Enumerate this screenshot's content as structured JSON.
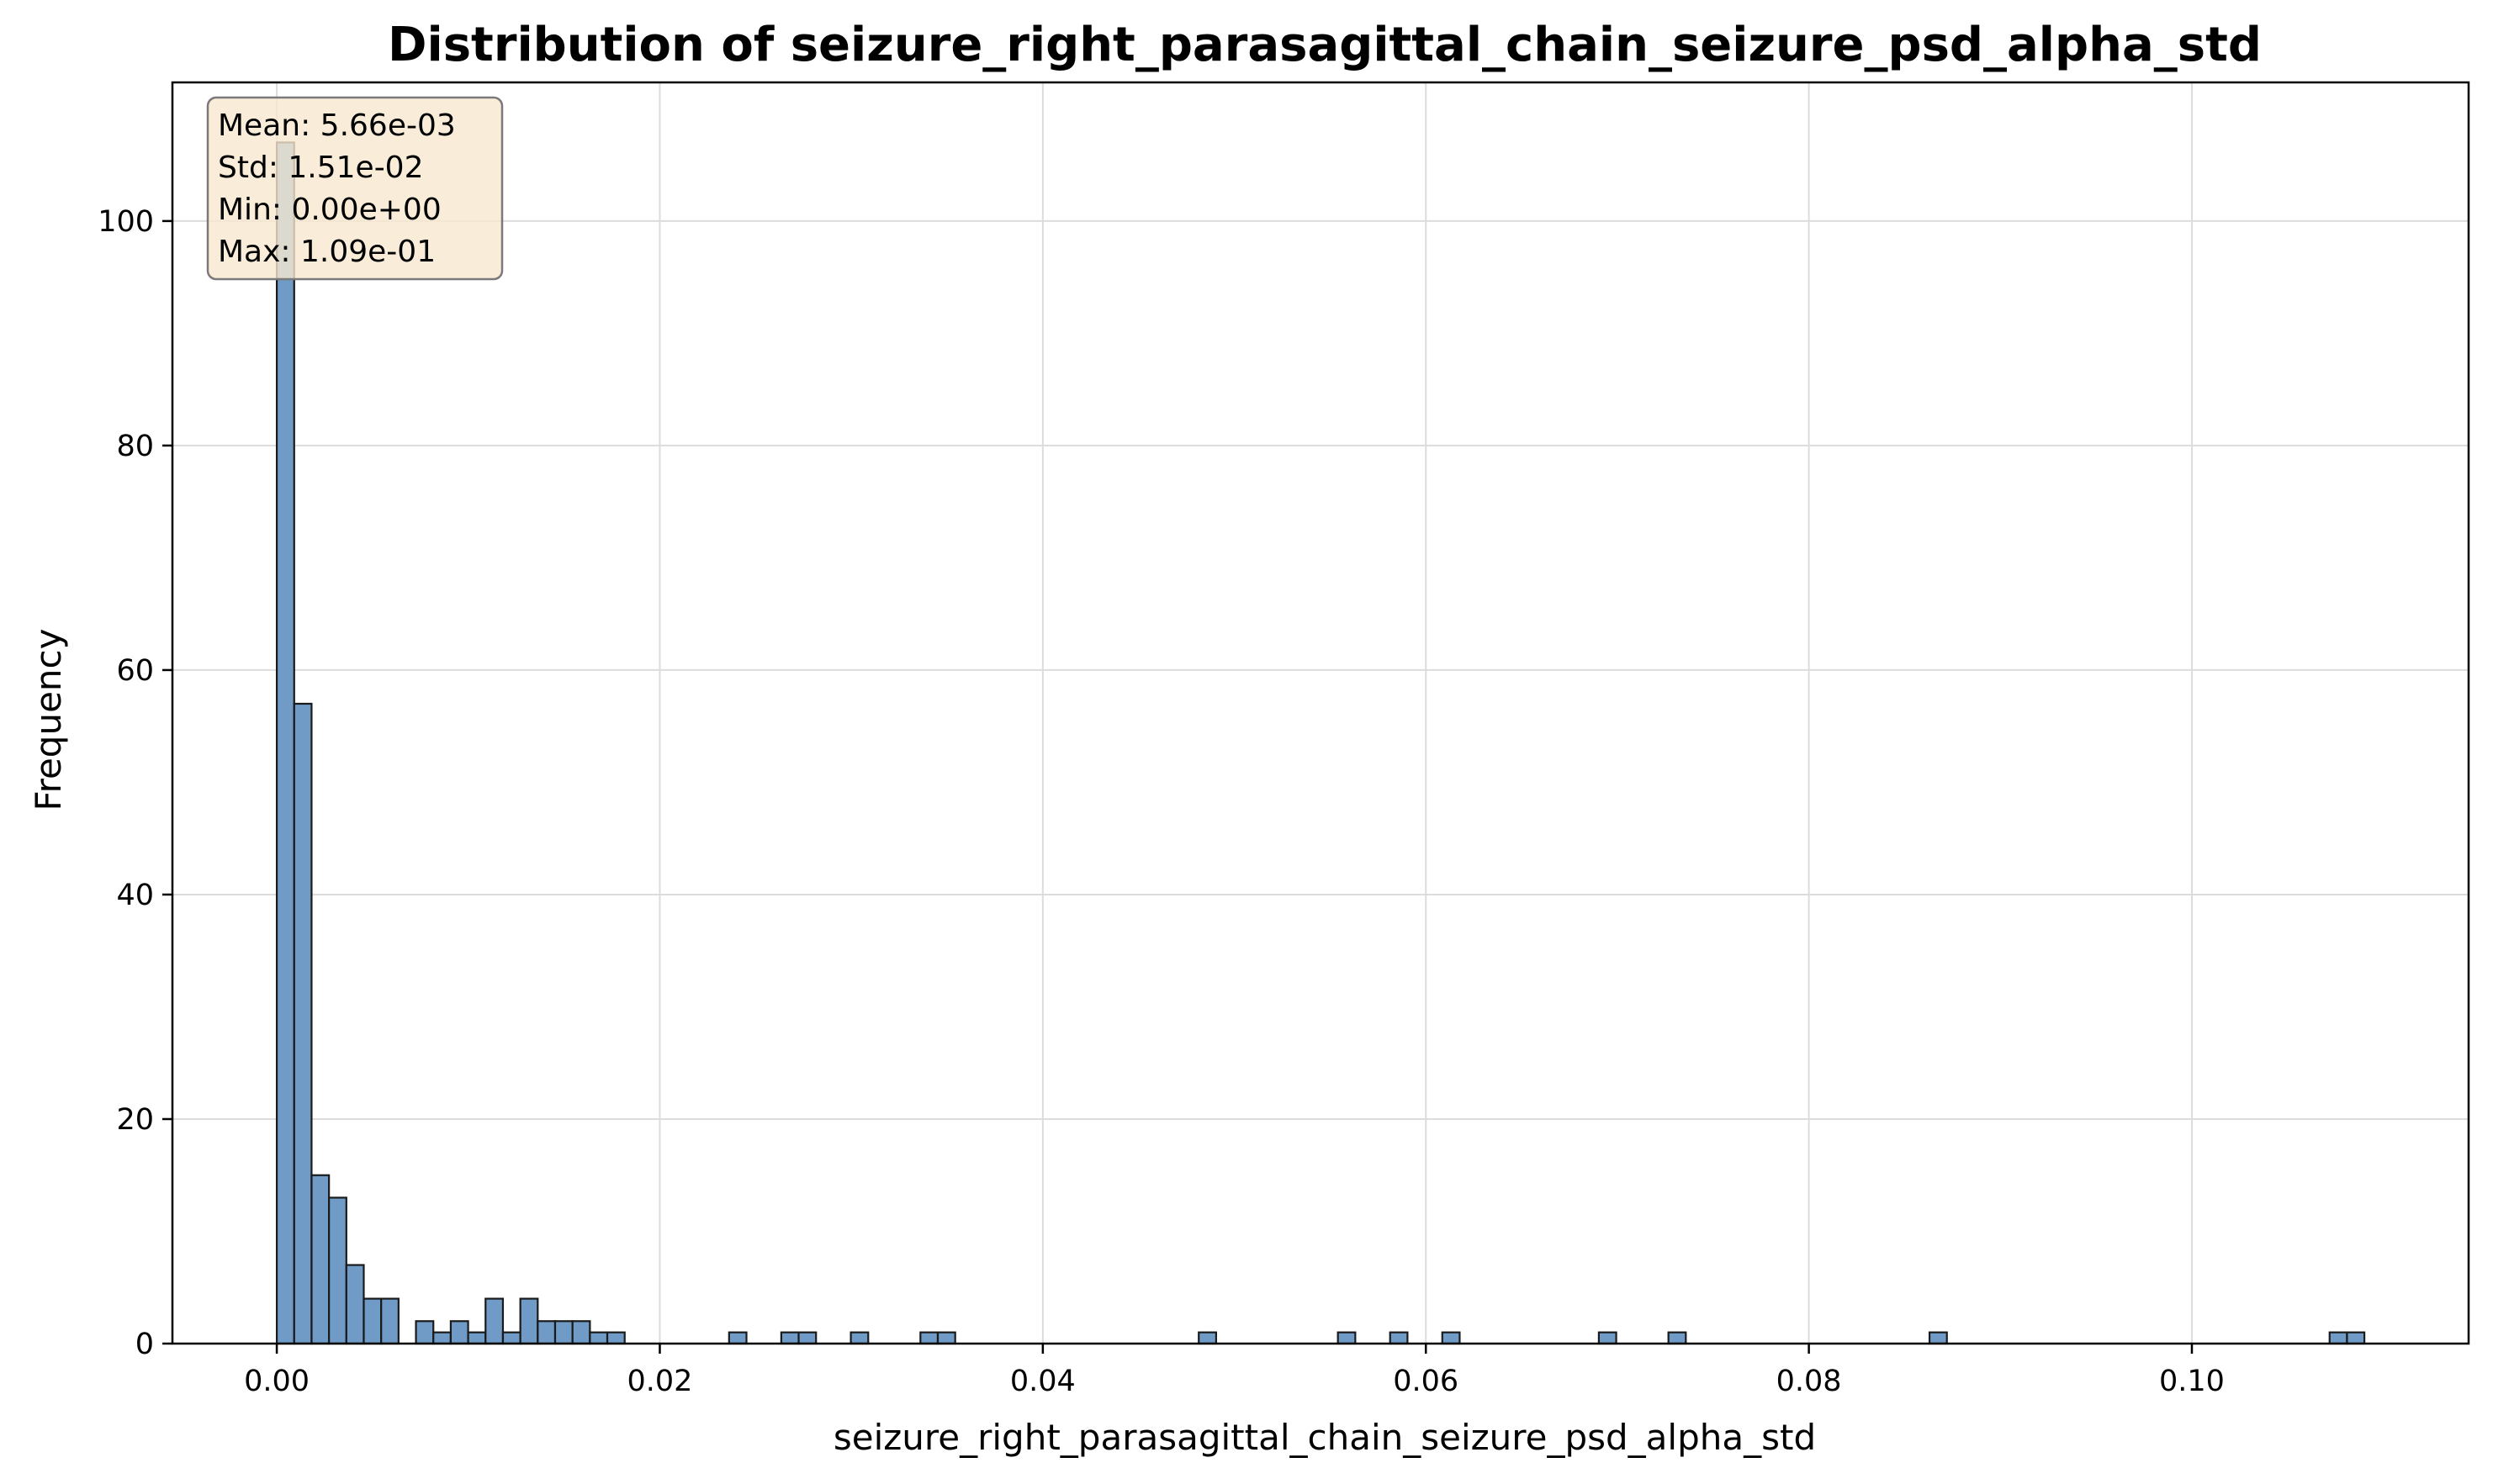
{
  "chart_data": {
    "type": "bar",
    "title": "Distribution of seizure_right_parasagittal_chain_seizure_psd_alpha_std",
    "xlabel": "seizure_right_parasagittal_chain_seizure_psd_alpha_std",
    "ylabel": "Frequency",
    "xlim": [
      -0.00545,
      0.11445
    ],
    "ylim": [
      0,
      112.35
    ],
    "xticks": [
      0.0,
      0.02,
      0.04,
      0.06,
      0.08,
      0.1
    ],
    "xtick_labels": [
      "0.00",
      "0.02",
      "0.04",
      "0.06",
      "0.08",
      "0.10"
    ],
    "yticks": [
      0,
      20,
      40,
      60,
      80,
      100
    ],
    "ytick_labels": [
      "0",
      "20",
      "40",
      "60",
      "80",
      "100"
    ],
    "grid": true,
    "bin_width": 0.000908,
    "bins": [
      {
        "x0": 0.0,
        "count": 107
      },
      {
        "x0": 0.000908,
        "count": 57
      },
      {
        "x0": 0.001817,
        "count": 15
      },
      {
        "x0": 0.002725,
        "count": 13
      },
      {
        "x0": 0.003633,
        "count": 7
      },
      {
        "x0": 0.004542,
        "count": 4
      },
      {
        "x0": 0.00545,
        "count": 4
      },
      {
        "x0": 0.007267,
        "count": 2
      },
      {
        "x0": 0.008175,
        "count": 1
      },
      {
        "x0": 0.009083,
        "count": 2
      },
      {
        "x0": 0.009992,
        "count": 1
      },
      {
        "x0": 0.0109,
        "count": 4
      },
      {
        "x0": 0.011808,
        "count": 1
      },
      {
        "x0": 0.012717,
        "count": 4
      },
      {
        "x0": 0.013625,
        "count": 2
      },
      {
        "x0": 0.014533,
        "count": 2
      },
      {
        "x0": 0.015442,
        "count": 2
      },
      {
        "x0": 0.01635,
        "count": 1
      },
      {
        "x0": 0.017258,
        "count": 1
      },
      {
        "x0": 0.023617,
        "count": 1
      },
      {
        "x0": 0.026342,
        "count": 1
      },
      {
        "x0": 0.02725,
        "count": 1
      },
      {
        "x0": 0.029975,
        "count": 1
      },
      {
        "x0": 0.033608,
        "count": 1
      },
      {
        "x0": 0.034517,
        "count": 1
      },
      {
        "x0": 0.048142,
        "count": 1
      },
      {
        "x0": 0.055408,
        "count": 1
      },
      {
        "x0": 0.058133,
        "count": 1
      },
      {
        "x0": 0.060858,
        "count": 1
      },
      {
        "x0": 0.069033,
        "count": 1
      },
      {
        "x0": 0.072667,
        "count": 1
      },
      {
        "x0": 0.0863,
        "count": 1
      },
      {
        "x0": 0.107192,
        "count": 1
      },
      {
        "x0": 0.1081,
        "count": 1
      }
    ],
    "bar_color": "#6f9bc6",
    "bar_edge_color": "#1a1a1a",
    "stats_box": {
      "lines": [
        "Mean: 5.66e-03",
        "Std: 1.51e-02",
        "Min: 0.00e+00",
        "Max: 1.09e-01"
      ],
      "placement": "top-left",
      "background": "#f8e8cf",
      "border": "#7a7a7a"
    }
  }
}
